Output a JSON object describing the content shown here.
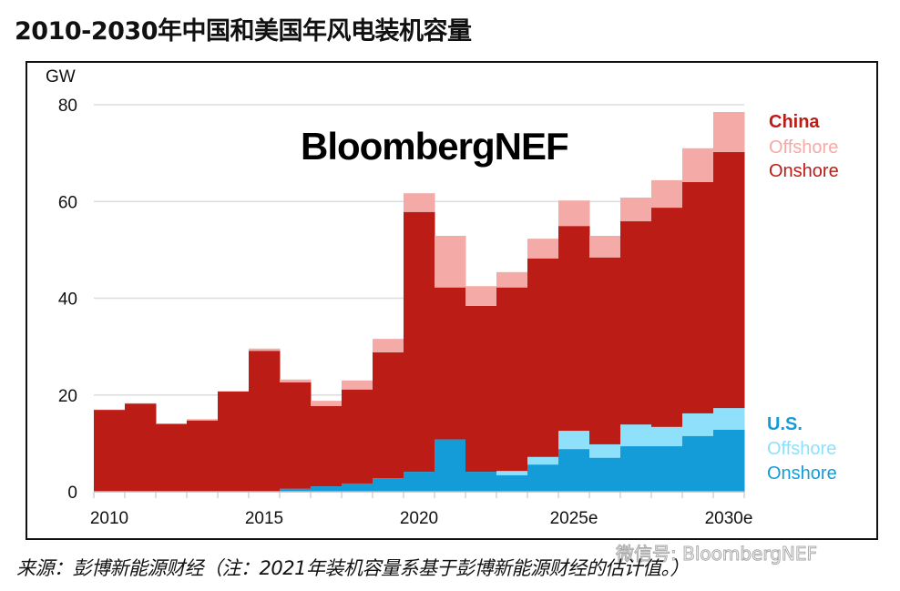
{
  "page_title": "2010-2030年中国和美国年风电装机容量",
  "source_note": "来源：彭博新能源财经（注：2021年装机容量系基于彭博新能源财经的估计值。）",
  "watermark": "微信号: BloombergNEF",
  "chart_data": {
    "type": "bar",
    "subtype": "overlapping step bars (China and U.S. each stacked onshore+offshore, U.S. drawn in front)",
    "brand_label": "BloombergNEF",
    "ylabel": "GW",
    "ylim": [
      0,
      80
    ],
    "yticks": [
      0,
      20,
      40,
      60,
      80
    ],
    "xtick_labels": [
      "2010",
      "2015",
      "2020",
      "2025e",
      "2030e"
    ],
    "grid": true,
    "categories": [
      "2010",
      "2011",
      "2012",
      "2013",
      "2014",
      "2015",
      "2016",
      "2017",
      "2018",
      "2019",
      "2020",
      "2021",
      "2022",
      "2023",
      "2024",
      "2025e",
      "2026e",
      "2027e",
      "2028e",
      "2029e",
      "2030e"
    ],
    "legend": {
      "china": {
        "title": "China",
        "offshore": "Offshore",
        "onshore": "Onshore",
        "placement": "top-right"
      },
      "us": {
        "title": "U.S.",
        "offshore": "Offshore",
        "onshore": "Onshore",
        "placement": "right"
      }
    },
    "colors": {
      "china_onshore": "#bb1c16",
      "china_offshore": "#f4aaa6",
      "us_onshore": "#149cd9",
      "us_offshore": "#8fe0fa"
    },
    "series": [
      {
        "name": "China Onshore",
        "values": [
          16.9,
          18.2,
          14.0,
          14.7,
          20.7,
          29.1,
          22.6,
          17.7,
          21.1,
          28.8,
          57.8,
          42.2,
          38.4,
          42.2,
          48.2,
          54.9,
          48.4,
          55.9,
          58.7,
          64.0,
          70.2
        ]
      },
      {
        "name": "China Offshore",
        "values": [
          0.1,
          0.1,
          0.1,
          0.3,
          0.1,
          0.5,
          0.6,
          1.1,
          1.9,
          2.8,
          3.9,
          10.7,
          4.1,
          3.2,
          4.1,
          5.3,
          4.5,
          4.9,
          5.7,
          7.0,
          8.3
        ]
      },
      {
        "name": "U.S. Onshore",
        "values": [
          0,
          0,
          0,
          0,
          0,
          0,
          0.6,
          1.1,
          1.7,
          2.8,
          4.1,
          10.8,
          4.1,
          3.4,
          5.6,
          8.8,
          7.0,
          9.4,
          9.4,
          11.5,
          12.8
        ]
      },
      {
        "name": "U.S. Offshore",
        "values": [
          0,
          0,
          0,
          0,
          0,
          0,
          0,
          0,
          0,
          0,
          0,
          0,
          0,
          0.9,
          1.6,
          3.8,
          2.8,
          4.5,
          4.0,
          4.7,
          4.5
        ]
      }
    ]
  }
}
